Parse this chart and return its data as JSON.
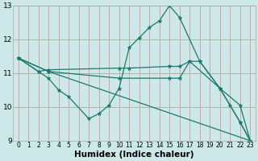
{
  "xlabel": "Humidex (Indice chaleur)",
  "bg_color": "#cce8e8",
  "grid_color": "#d8a0a0",
  "line_color": "#1a7a6e",
  "xlim": [
    -0.5,
    23.5
  ],
  "ylim": [
    9,
    13
  ],
  "yticks": [
    9,
    10,
    11,
    12,
    13
  ],
  "xticks": [
    0,
    1,
    2,
    3,
    4,
    5,
    6,
    7,
    8,
    9,
    10,
    11,
    12,
    13,
    14,
    15,
    16,
    17,
    18,
    19,
    20,
    21,
    22,
    23
  ],
  "lines": [
    {
      "x": [
        0,
        2,
        3,
        4,
        5,
        7,
        8,
        9,
        10,
        11,
        12,
        13,
        14,
        15,
        16,
        18,
        20,
        21,
        22,
        23
      ],
      "y": [
        11.45,
        11.05,
        10.85,
        10.5,
        10.3,
        9.65,
        9.8,
        10.05,
        10.55,
        11.75,
        12.05,
        12.35,
        12.55,
        13.0,
        12.65,
        11.35,
        10.55,
        10.05,
        9.55,
        9.0
      ]
    },
    {
      "x": [
        0,
        2,
        3,
        10,
        11,
        15,
        16,
        17,
        18,
        20,
        22,
        23
      ],
      "y": [
        11.45,
        11.05,
        11.1,
        11.15,
        11.15,
        11.2,
        11.2,
        11.35,
        11.35,
        10.55,
        10.05,
        9.0
      ]
    },
    {
      "x": [
        0,
        3,
        10,
        15,
        16,
        17,
        20,
        22,
        23
      ],
      "y": [
        11.45,
        11.05,
        10.85,
        10.85,
        10.85,
        11.35,
        10.55,
        9.55,
        9.0
      ]
    },
    {
      "x": [
        0,
        3,
        23
      ],
      "y": [
        11.45,
        11.05,
        9.0
      ]
    }
  ]
}
